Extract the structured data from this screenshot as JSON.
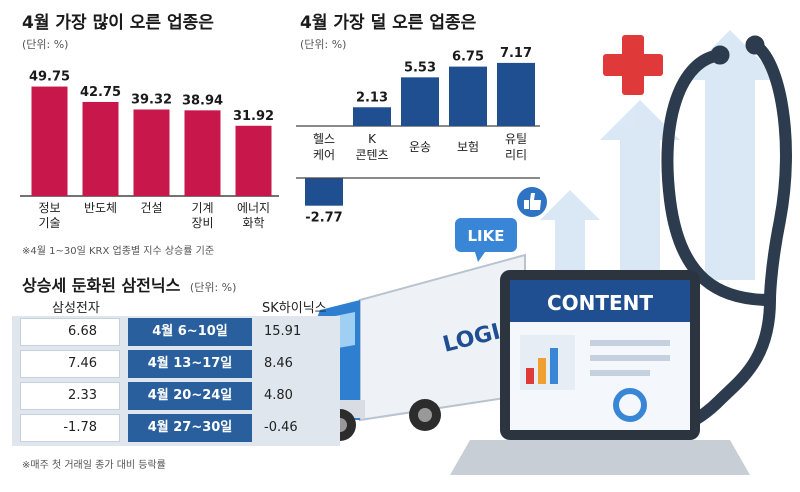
{
  "left_chart": {
    "title": "4월 가장 많이 오른 업종은",
    "unit": "(단위: %)",
    "note": "※4월 1~30일 KRX 업종별 지수 상승률 기준"
  },
  "right_chart": {
    "title": "4월 가장 덜 오른 업종은",
    "unit": "(단위: %)"
  },
  "table": {
    "title": "상승세 둔화된 삼전닉스",
    "unit": "(단위: %)",
    "col_left": "삼성전자",
    "col_right": "SK하이닉스",
    "rows": [
      {
        "left": "6.68",
        "period": "4월 6~10일",
        "right": "15.91"
      },
      {
        "left": "7.46",
        "period": "4월 13~17일",
        "right": "8.46"
      },
      {
        "left": "2.33",
        "period": "4월 20~24일",
        "right": "4.80"
      },
      {
        "left": "-1.78",
        "period": "4월 27~30일",
        "right": "-0.46"
      }
    ],
    "note": "※매주 첫 거래일 종가 대비 등락률"
  },
  "illustration": {
    "like_text": "LIKE",
    "truck_text": "LOGIS",
    "screen_text": "CONTENT"
  },
  "colors": {
    "crimson": "#c8174a",
    "navy": "#1f4f91",
    "table_blue": "#2a5f9e"
  },
  "chart_data": [
    {
      "type": "bar",
      "title": "4월 가장 많이 오른 업종은",
      "categories": [
        "정보\n기술",
        "반도체",
        "건설",
        "기계\n장비",
        "에너지\n화학"
      ],
      "values": [
        49.75,
        42.75,
        39.32,
        38.94,
        31.92
      ],
      "labels": [
        "49.75",
        "42.75",
        "39.32",
        "38.94",
        "31.92"
      ],
      "ylim": [
        0,
        50
      ]
    },
    {
      "type": "bar",
      "title": "4월 가장 덜 오른 업종은",
      "categories": [
        "헬스\n케어",
        "K\n콘텐츠",
        "운송",
        "보험",
        "유틸\n리티"
      ],
      "values": [
        -2.77,
        2.13,
        5.53,
        6.75,
        7.17
      ],
      "labels": [
        "-2.77",
        "2.13",
        "5.53",
        "6.75",
        "7.17"
      ],
      "ylim": [
        -3,
        7.5
      ]
    }
  ]
}
